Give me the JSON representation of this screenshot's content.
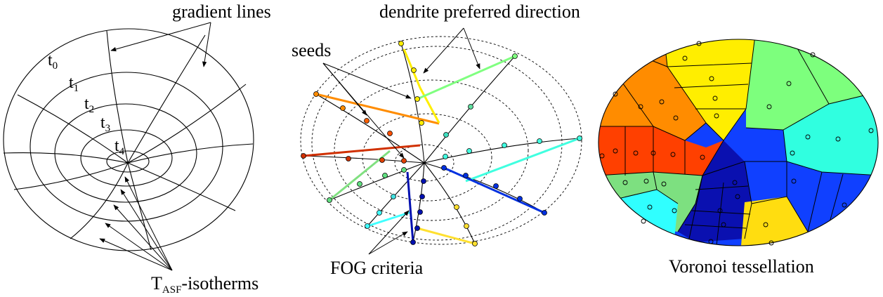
{
  "panels": [
    {
      "labels": [
        {
          "text": "gradient lines"
        },
        {
          "symbol": "t",
          "subscript": "0"
        },
        {
          "symbol": "t",
          "subscript": "1"
        },
        {
          "symbol": "t",
          "subscript": "2"
        },
        {
          "symbol": "t",
          "subscript": "3"
        },
        {
          "symbol": "t",
          "subscript": "4"
        },
        {
          "symbol": "T",
          "subscript": "ASF",
          "suffix": "-isotherms"
        }
      ]
    },
    {
      "labels": [
        {
          "text": "seeds"
        },
        {
          "text": "dendrite preferred direction"
        },
        {
          "text": "FOG criteria"
        }
      ]
    },
    {
      "labels": [
        {
          "text": "Voronoi tessellation"
        }
      ]
    }
  ]
}
